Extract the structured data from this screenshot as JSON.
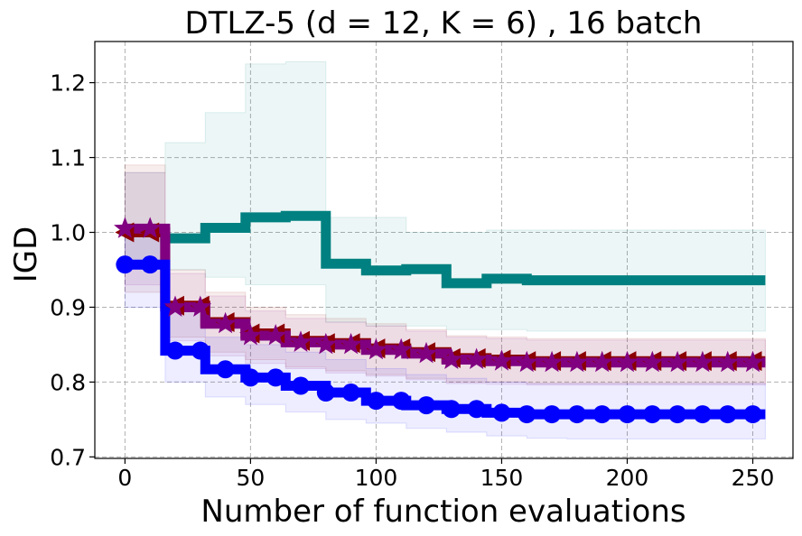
{
  "chart_data": {
    "type": "line",
    "title": "DTLZ-5 (d = 12, K = 6) , 16 batch",
    "xlabel": "Number of function evaluations",
    "ylabel": "IGD",
    "xlim": [
      -12,
      266
    ],
    "ylim": [
      0.698,
      1.255
    ],
    "xticks": [
      0,
      50,
      100,
      150,
      200,
      250
    ],
    "yticks": [
      0.7,
      0.8,
      0.9,
      1.0,
      1.1,
      1.2
    ],
    "xtick_labels": [
      "0",
      "50",
      "100",
      "150",
      "200",
      "250"
    ],
    "ytick_labels": [
      "0.7",
      "0.8",
      "0.9",
      "1.0",
      "1.1",
      "1.2"
    ],
    "grid": true,
    "step_breaks": [
      0,
      16,
      32,
      48,
      64,
      80,
      96,
      112,
      128,
      144,
      160,
      176,
      192,
      208,
      224,
      240,
      255
    ],
    "series": [
      {
        "name": "teal",
        "color": "#008080",
        "marker": "none",
        "values": [
          1.0,
          0.992,
          1.006,
          1.02,
          1.022,
          0.958,
          0.949,
          0.951,
          0.932,
          0.938,
          0.936,
          0.936,
          0.936,
          0.936,
          0.936,
          0.936
        ],
        "band_low": [
          0.96,
          0.95,
          0.94,
          0.93,
          0.93,
          0.88,
          0.875,
          0.875,
          0.87,
          0.87,
          0.868,
          0.868,
          0.868,
          0.868,
          0.868,
          0.868
        ],
        "band_high": [
          1.08,
          1.12,
          1.16,
          1.225,
          1.228,
          1.02,
          1.02,
          1.0,
          1.0,
          1.003,
          1.003,
          1.003,
          1.003,
          1.003,
          1.003,
          1.003
        ]
      },
      {
        "name": "darkred",
        "color": "#8b0000",
        "marker": "triangle-left",
        "values": [
          1.0,
          0.902,
          0.88,
          0.865,
          0.855,
          0.852,
          0.845,
          0.84,
          0.832,
          0.83,
          0.828,
          0.828,
          0.828,
          0.828,
          0.828,
          0.828
        ],
        "band_low": [
          0.92,
          0.86,
          0.84,
          0.83,
          0.82,
          0.815,
          0.81,
          0.805,
          0.8,
          0.8,
          0.798,
          0.798,
          0.798,
          0.798,
          0.798,
          0.798
        ],
        "band_high": [
          1.09,
          0.95,
          0.92,
          0.9,
          0.89,
          0.885,
          0.878,
          0.87,
          0.862,
          0.86,
          0.858,
          0.858,
          0.858,
          0.858,
          0.858,
          0.858
        ]
      },
      {
        "name": "purple",
        "color": "#800080",
        "marker": "star",
        "values": [
          1.005,
          0.9,
          0.878,
          0.862,
          0.853,
          0.85,
          0.843,
          0.838,
          0.83,
          0.828,
          0.826,
          0.826,
          0.826,
          0.826,
          0.826,
          0.826
        ],
        "band_low": [
          0.93,
          0.855,
          0.835,
          0.825,
          0.818,
          0.812,
          0.808,
          0.803,
          0.798,
          0.797,
          0.796,
          0.796,
          0.796,
          0.796,
          0.796,
          0.796
        ],
        "band_high": [
          1.08,
          0.945,
          0.915,
          0.895,
          0.885,
          0.88,
          0.875,
          0.868,
          0.86,
          0.858,
          0.856,
          0.856,
          0.856,
          0.856,
          0.856,
          0.856
        ]
      },
      {
        "name": "blue",
        "color": "#0000ff",
        "marker": "circle",
        "values": [
          0.957,
          0.842,
          0.817,
          0.806,
          0.795,
          0.786,
          0.775,
          0.769,
          0.764,
          0.759,
          0.757,
          0.757,
          0.757,
          0.757,
          0.757,
          0.757
        ],
        "band_low": [
          0.9,
          0.8,
          0.78,
          0.77,
          0.76,
          0.75,
          0.745,
          0.738,
          0.733,
          0.728,
          0.725,
          0.724,
          0.724,
          0.724,
          0.724,
          0.724
        ],
        "band_high": [
          1.01,
          0.9,
          0.86,
          0.85,
          0.84,
          0.83,
          0.818,
          0.81,
          0.805,
          0.8,
          0.798,
          0.798,
          0.798,
          0.798,
          0.798,
          0.798
        ]
      }
    ]
  }
}
